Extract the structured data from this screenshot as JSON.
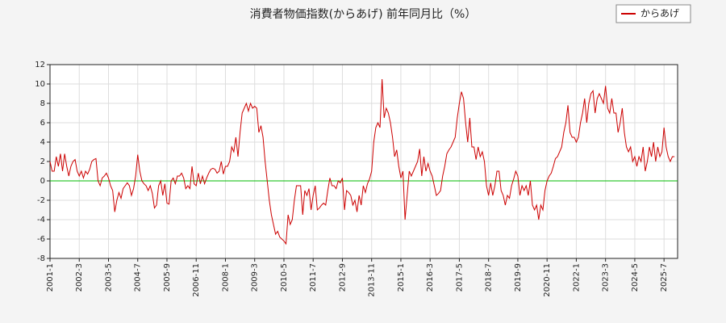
{
  "chart_data": {
    "type": "line",
    "title": "消費者物価指数(からあげ) 前年同月比（%）",
    "categories": [
      "2001-1",
      null,
      null,
      null,
      null,
      null,
      null,
      null,
      null,
      null,
      null,
      null,
      null,
      null,
      "2002-3",
      null,
      null,
      null,
      null,
      null,
      null,
      null,
      null,
      null,
      null,
      null,
      null,
      null,
      "2003-5",
      null,
      null,
      null,
      null,
      null,
      null,
      null,
      null,
      null,
      null,
      null,
      null,
      null,
      "2004-7",
      null,
      null,
      null,
      null,
      null,
      null,
      null,
      null,
      null,
      null,
      null,
      null,
      null,
      "2005-9",
      null,
      null,
      null,
      null,
      null,
      null,
      null,
      null,
      null,
      null,
      null,
      null,
      null,
      "2006-11",
      null,
      null,
      null,
      null,
      null,
      null,
      null,
      null,
      null,
      null,
      null,
      null,
      null,
      "2008-1",
      null,
      null,
      null,
      null,
      null,
      null,
      null,
      null,
      null,
      null,
      null,
      null,
      null,
      "2009-3",
      null,
      null,
      null,
      null,
      null,
      null,
      null,
      null,
      null,
      null,
      null,
      null,
      null,
      "2010-5",
      null,
      null,
      null,
      null,
      null,
      null,
      null,
      null,
      null,
      null,
      null,
      null,
      null,
      "2011-7",
      null,
      null,
      null,
      null,
      null,
      null,
      null,
      null,
      null,
      null,
      null,
      null,
      null,
      "2012-9",
      null,
      null,
      null,
      null,
      null,
      null,
      null,
      null,
      null,
      null,
      null,
      null,
      null,
      "2013-11",
      null,
      null,
      null,
      null,
      null,
      null,
      null,
      null,
      null,
      null,
      null,
      null,
      null,
      "2015-1",
      null,
      null,
      null,
      null,
      null,
      null,
      null,
      null,
      null,
      null,
      null,
      null,
      null,
      "2016-3",
      null,
      null,
      null,
      null,
      null,
      null,
      null,
      null,
      null,
      null,
      null,
      null,
      null,
      "2017-5",
      null,
      null,
      null,
      null,
      null,
      null,
      null,
      null,
      null,
      null,
      null,
      null,
      null,
      "2018-7",
      null,
      null,
      null,
      null,
      null,
      null,
      null,
      null,
      null,
      null,
      null,
      null,
      null,
      "2019-9",
      null,
      null,
      null,
      null,
      null,
      null,
      null,
      null,
      null,
      null,
      null,
      null,
      null,
      "2020-11",
      null,
      null,
      null,
      null,
      null,
      null,
      null,
      null,
      null,
      null,
      null,
      null,
      null,
      "2022-1",
      null,
      null,
      null,
      null,
      null,
      null,
      null,
      null,
      null,
      null,
      null,
      null,
      null,
      "2023-3",
      null,
      null,
      null,
      null,
      null,
      null,
      null,
      null,
      null,
      null,
      null,
      null,
      null,
      "2024-5",
      null,
      null,
      null,
      null,
      null,
      null,
      null,
      null,
      null,
      null,
      null,
      null,
      null,
      "2025-7",
      null,
      null,
      null,
      null,
      null
    ],
    "series": [
      {
        "name": "からあげ",
        "color": "#cc0000",
        "values": [
          2,
          1,
          1,
          2.5,
          1.5,
          2.8,
          1,
          2.8,
          1.5,
          0.5,
          1.5,
          2,
          2.2,
          1,
          0.5,
          1,
          0.3,
          1,
          0.7,
          1.2,
          2,
          2.2,
          2.3,
          0,
          -0.5,
          0.3,
          0.5,
          0.8,
          0.3,
          -0.5,
          -1,
          -3.2,
          -2,
          -1.2,
          -1.8,
          -0.8,
          -0.5,
          -0.2,
          -0.5,
          -1.5,
          -0.8,
          0.5,
          2.7,
          1,
          0,
          -0.3,
          -0.5,
          -1,
          -0.5,
          -1.3,
          -2.8,
          -2.5,
          -0.5,
          0,
          -1.5,
          -0.3,
          -2.3,
          -2.4,
          0,
          0.3,
          -0.3,
          0.5,
          0.5,
          0.8,
          0.3,
          -0.8,
          -0.5,
          -0.8,
          1.5,
          -0.3,
          -0.5,
          0.8,
          -0.3,
          0.5,
          -0.3,
          0.3,
          0.8,
          1.2,
          1.3,
          1.2,
          0.8,
          1,
          2,
          0.7,
          1.5,
          1.5,
          2,
          3.5,
          3,
          4.5,
          2.5,
          5,
          7,
          7.5,
          8,
          7.2,
          8,
          7.5,
          7.7,
          7.5,
          5,
          5.7,
          4.5,
          2,
          0,
          -2,
          -3.5,
          -4.5,
          -5.5,
          -5.2,
          -5.8,
          -6,
          -6.2,
          -6.5,
          -3.5,
          -4.5,
          -4,
          -2,
          -0.5,
          -0.5,
          -0.5,
          -3.5,
          -1,
          -1.5,
          -0.8,
          -3,
          -1.5,
          -0.5,
          -3,
          -2.8,
          -2.5,
          -2.3,
          -2.5,
          -1,
          0.3,
          -0.5,
          -0.5,
          -0.8,
          0,
          -0.2,
          0.3,
          -3,
          -1,
          -1.2,
          -1.5,
          -2.5,
          -2,
          -3.2,
          -1.5,
          -2.5,
          -0.5,
          -1.2,
          -0.3,
          0.2,
          1,
          4,
          5.5,
          6,
          5.5,
          10.5,
          6.5,
          7.5,
          7,
          6,
          4.5,
          2.5,
          3.2,
          1.5,
          0.3,
          1,
          -4,
          -1.5,
          1,
          0.5,
          1,
          1.5,
          2,
          3.3,
          0.5,
          2.5,
          1,
          1.8,
          1,
          0.5,
          -0.5,
          -1.5,
          -1.3,
          -1,
          0.5,
          1.5,
          2.8,
          3.2,
          3.5,
          4,
          4.5,
          6.5,
          8,
          9.2,
          8.5,
          6,
          4,
          6.5,
          3.5,
          3.5,
          2.2,
          3.5,
          2.5,
          3,
          2,
          -0.5,
          -1.5,
          -0.2,
          -1.5,
          -0.5,
          1,
          1,
          -1,
          -1.5,
          -2.5,
          -1.5,
          -1.8,
          -0.5,
          0.2,
          1,
          0.5,
          -1.5,
          -0.5,
          -1,
          -0.5,
          -1.5,
          0,
          -2.5,
          -3,
          -2.5,
          -4,
          -2.5,
          -3,
          -1,
          0,
          0.5,
          0.8,
          1.5,
          2.3,
          2.5,
          3,
          3.5,
          5,
          6,
          7.8,
          5,
          4.5,
          4.5,
          4,
          4.5,
          6,
          7,
          8.5,
          6,
          8,
          9,
          9.3,
          7,
          8.5,
          9,
          8.5,
          8,
          9.8,
          7.5,
          7,
          8.5,
          7,
          7,
          5,
          6,
          7.5,
          5,
          3.5,
          3,
          3.5,
          2,
          2.5,
          1.5,
          2.5,
          2,
          3.5,
          1,
          2,
          3.5,
          2.5,
          4,
          2,
          3.5,
          2.5,
          3,
          5.5,
          3.5,
          2.5,
          2,
          2.5,
          2.5
        ]
      }
    ],
    "ylim": [
      -8,
      12
    ],
    "yticks": [
      -8,
      -6,
      -4,
      -2,
      0,
      2,
      4,
      6,
      8,
      10,
      12
    ],
    "grid": true,
    "hline": 0,
    "hline_color": "#00bb00",
    "legend": "upper right"
  }
}
